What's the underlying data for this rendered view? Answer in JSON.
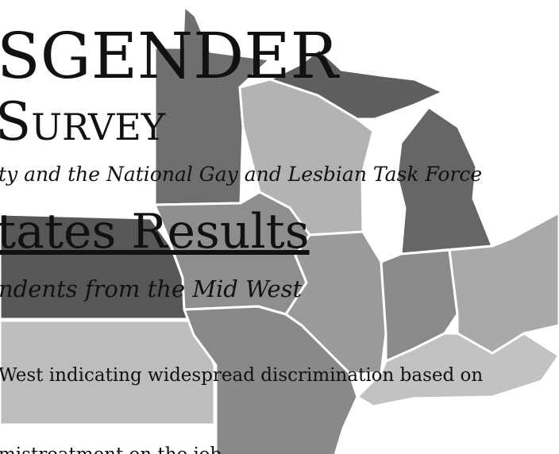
{
  "title": {
    "line1": "SGENDER",
    "line2": "Survey",
    "credit": "ty and the National Gay and Lesbian Task Force"
  },
  "section": {
    "heading": "tates Results",
    "subheading": "ndents from the Mid West"
  },
  "body": [
    "West indicating widespread discrimination based on",
    "mistreatment on the job"
  ]
}
